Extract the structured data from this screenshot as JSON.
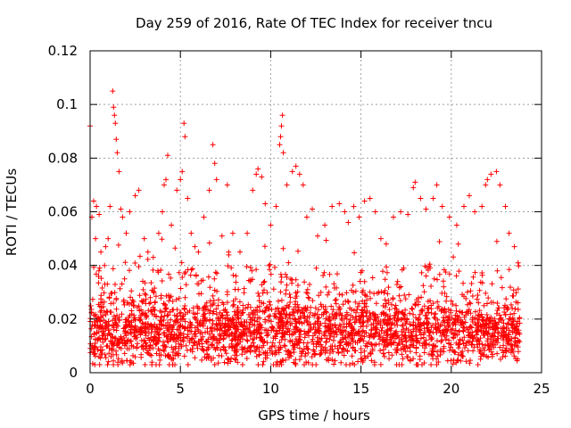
{
  "chart_data": {
    "type": "scatter",
    "title": "Day 259 of 2016, Rate Of TEC Index for receiver tncu",
    "xlabel": "GPS time / hours",
    "ylabel": "ROTI / TECUs",
    "xlim": [
      0,
      25
    ],
    "ylim": [
      0,
      0.12
    ],
    "x_ticks": [
      0,
      5,
      10,
      15,
      20,
      25
    ],
    "x_tick_labels": [
      "0",
      "5",
      "10",
      "15",
      "20",
      "25"
    ],
    "y_ticks": [
      0,
      0.02,
      0.04,
      0.06,
      0.08,
      0.1,
      0.12
    ],
    "y_tick_labels": [
      "0",
      "0.02",
      "0.04",
      "0.06",
      "0.08",
      "0.1",
      "0.12"
    ],
    "grid": true,
    "marker": "+",
    "series": [
      {
        "name": "ROTI",
        "color": "#ff0000",
        "points": [
          [
            0.0,
            0.092
          ],
          [
            0.1,
            0.058
          ],
          [
            0.2,
            0.064
          ],
          [
            0.3,
            0.05
          ],
          [
            0.35,
            0.062
          ],
          [
            0.5,
            0.059
          ],
          [
            0.6,
            0.045
          ],
          [
            0.8,
            0.04
          ],
          [
            1.0,
            0.05
          ],
          [
            1.1,
            0.062
          ],
          [
            1.25,
            0.105
          ],
          [
            1.3,
            0.099
          ],
          [
            1.35,
            0.096
          ],
          [
            1.4,
            0.093
          ],
          [
            1.45,
            0.087
          ],
          [
            1.5,
            0.082
          ],
          [
            1.6,
            0.075
          ],
          [
            1.7,
            0.061
          ],
          [
            1.8,
            0.058
          ],
          [
            2.0,
            0.052
          ],
          [
            2.2,
            0.06
          ],
          [
            2.5,
            0.066
          ],
          [
            2.7,
            0.068
          ],
          [
            3.0,
            0.05
          ],
          [
            3.2,
            0.045
          ],
          [
            3.5,
            0.043
          ],
          [
            3.8,
            0.052
          ],
          [
            4.0,
            0.06
          ],
          [
            4.1,
            0.07
          ],
          [
            4.2,
            0.072
          ],
          [
            4.3,
            0.081
          ],
          [
            4.5,
            0.055
          ],
          [
            4.8,
            0.068
          ],
          [
            5.0,
            0.072
          ],
          [
            5.1,
            0.075
          ],
          [
            5.2,
            0.093
          ],
          [
            5.25,
            0.088
          ],
          [
            5.4,
            0.065
          ],
          [
            5.6,
            0.052
          ],
          [
            5.8,
            0.047
          ],
          [
            6.0,
            0.045
          ],
          [
            6.3,
            0.058
          ],
          [
            6.6,
            0.068
          ],
          [
            6.8,
            0.085
          ],
          [
            6.9,
            0.078
          ],
          [
            7.0,
            0.072
          ],
          [
            7.3,
            0.051
          ],
          [
            7.6,
            0.07
          ],
          [
            7.9,
            0.052
          ],
          [
            8.3,
            0.045
          ],
          [
            8.7,
            0.052
          ],
          [
            9.0,
            0.068
          ],
          [
            9.2,
            0.074
          ],
          [
            9.3,
            0.076
          ],
          [
            9.5,
            0.073
          ],
          [
            9.7,
            0.063
          ],
          [
            10.0,
            0.055
          ],
          [
            10.3,
            0.062
          ],
          [
            10.5,
            0.085
          ],
          [
            10.55,
            0.088
          ],
          [
            10.6,
            0.092
          ],
          [
            10.65,
            0.096
          ],
          [
            10.7,
            0.082
          ],
          [
            10.9,
            0.07
          ],
          [
            11.2,
            0.075
          ],
          [
            11.4,
            0.077
          ],
          [
            11.6,
            0.074
          ],
          [
            11.8,
            0.07
          ],
          [
            12.0,
            0.058
          ],
          [
            12.3,
            0.061
          ],
          [
            12.6,
            0.051
          ],
          [
            13.0,
            0.055
          ],
          [
            13.4,
            0.062
          ],
          [
            13.8,
            0.063
          ],
          [
            14.1,
            0.06
          ],
          [
            14.3,
            0.056
          ],
          [
            14.6,
            0.062
          ],
          [
            14.9,
            0.058
          ],
          [
            15.2,
            0.064
          ],
          [
            15.5,
            0.065
          ],
          [
            15.8,
            0.06
          ],
          [
            16.1,
            0.05
          ],
          [
            16.4,
            0.048
          ],
          [
            16.8,
            0.058
          ],
          [
            17.2,
            0.06
          ],
          [
            17.6,
            0.059
          ],
          [
            17.9,
            0.069
          ],
          [
            18.0,
            0.071
          ],
          [
            18.3,
            0.065
          ],
          [
            18.6,
            0.061
          ],
          [
            19.0,
            0.065
          ],
          [
            19.2,
            0.07
          ],
          [
            19.5,
            0.062
          ],
          [
            19.9,
            0.058
          ],
          [
            20.3,
            0.055
          ],
          [
            20.7,
            0.062
          ],
          [
            21.0,
            0.066
          ],
          [
            21.3,
            0.06
          ],
          [
            21.7,
            0.062
          ],
          [
            21.9,
            0.07
          ],
          [
            22.0,
            0.072
          ],
          [
            22.2,
            0.074
          ],
          [
            22.5,
            0.075
          ],
          [
            22.7,
            0.07
          ],
          [
            23.0,
            0.062
          ],
          [
            23.2,
            0.052
          ],
          [
            23.5,
            0.047
          ],
          [
            23.7,
            0.041
          ]
        ],
        "dense_band": {
          "x_range": [
            0,
            23.8
          ],
          "y_range": [
            0.003,
            0.03
          ],
          "typical": 0.015
        }
      }
    ]
  }
}
